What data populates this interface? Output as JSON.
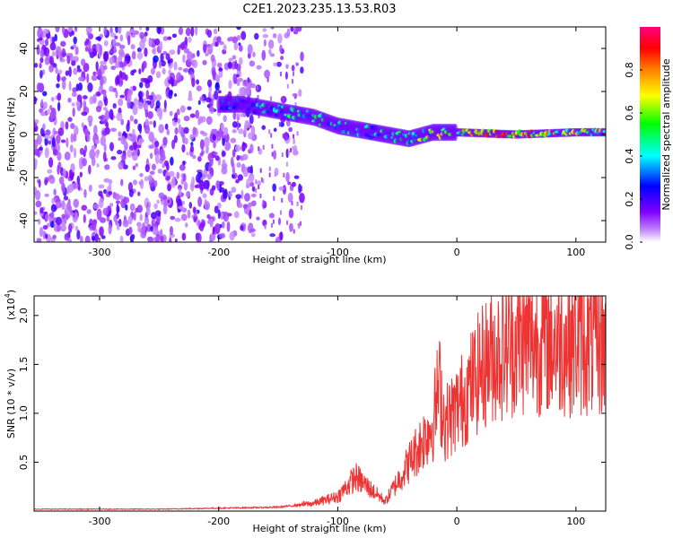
{
  "title": "C2E1.2023.235.13.53.R03",
  "chart_data": [
    {
      "type": "heatmap",
      "xlabel": "Height of straight line (km)",
      "ylabel": "Frequency (Hz)",
      "xlim": [
        -355,
        125
      ],
      "ylim": [
        -50,
        50
      ],
      "x_ticks": [
        -300,
        -200,
        -100,
        0,
        100
      ],
      "x_tick_labels": [
        "-300",
        "-200",
        "-100",
        "0",
        "100"
      ],
      "y_ticks": [
        -40,
        -20,
        0,
        20,
        40
      ],
      "y_tick_labels": [
        "-40",
        "-20",
        "0",
        "20",
        "40"
      ],
      "colorbar": {
        "label": "Normalized spectral amplitude",
        "range": [
          0,
          1
        ],
        "ticks": [
          0.0,
          0.2,
          0.4,
          0.6,
          0.8
        ],
        "tick_labels": [
          "0.0",
          "0.2",
          "0.4",
          "0.6",
          "0.8"
        ],
        "colormap": [
          "#ffffff",
          "#7f00ff",
          "#0000ff",
          "#00ffff",
          "#00ff00",
          "#ffff00",
          "#ff8000",
          "#ff0000",
          "#ff0080"
        ]
      },
      "ridge": {
        "x": [
          -200,
          -180,
          -150,
          -120,
          -100,
          -80,
          -60,
          -40,
          -20,
          0,
          50,
          100,
          125
        ],
        "frequency": [
          14,
          14,
          11,
          8,
          4,
          2,
          0,
          -2,
          1,
          1,
          0,
          1,
          1
        ],
        "amplitude": [
          0.3,
          0.35,
          0.45,
          0.5,
          0.45,
          0.4,
          0.45,
          0.5,
          0.7,
          0.7,
          0.9,
          0.65,
          0.6
        ]
      },
      "noise_region_x": [
        -355,
        -170
      ],
      "grid": false
    },
    {
      "type": "line",
      "xlabel": "Height of straight line (km)",
      "ylabel": "SNR (10 * v/v)",
      "y_scale_label": "(x10",
      "y_scale_exponent": "4",
      "y_scale_suffix": ")",
      "xlim": [
        -355,
        125
      ],
      "ylim": [
        0,
        2.2
      ],
      "x_ticks": [
        -300,
        -200,
        -100,
        0,
        100
      ],
      "x_tick_labels": [
        "-300",
        "-200",
        "-100",
        "0",
        "100"
      ],
      "y_ticks": [
        0.5,
        1.0,
        1.5,
        2.0
      ],
      "y_tick_labels": [
        "0.5",
        "1.0",
        "1.5",
        "2.0"
      ],
      "series": [
        {
          "color": "#ee3333",
          "x": [
            -355,
            -300,
            -250,
            -200,
            -150,
            -120,
            -100,
            -85,
            -70,
            -60,
            -50,
            -40,
            -30,
            -20,
            -15,
            -10,
            0,
            10,
            20,
            30,
            50,
            75,
            100,
            125
          ],
          "y": [
            0.02,
            0.02,
            0.02,
            0.03,
            0.04,
            0.08,
            0.15,
            0.35,
            0.2,
            0.1,
            0.3,
            0.5,
            0.7,
            0.9,
            1.3,
            0.9,
            1.05,
            1.25,
            1.45,
            1.6,
            1.72,
            1.75,
            1.72,
            1.7
          ]
        }
      ],
      "grid": false
    }
  ]
}
